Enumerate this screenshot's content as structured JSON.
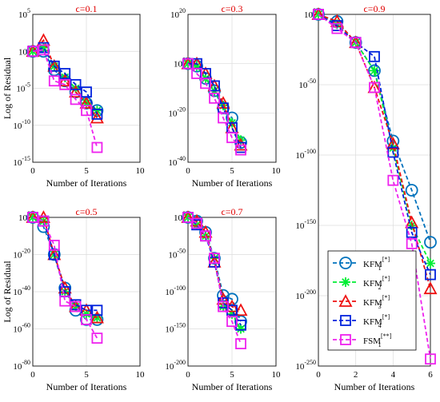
{
  "chart_data": [
    {
      "type": "line",
      "title": "ϲ=0.1",
      "xlabel": "Number of Iterations",
      "ylabel": "Log of Residual",
      "xlim": [
        0,
        10
      ],
      "xticks": [
        "0",
        "5",
        "10"
      ],
      "ylim_log10": [
        -15,
        5
      ],
      "yticks": [
        {
          "base": "10",
          "exp": "5"
        },
        {
          "base": "10",
          "exp": "0"
        },
        {
          "base": "10",
          "exp": "-5"
        },
        {
          "base": "10",
          "exp": "-10"
        },
        {
          "base": "10",
          "exp": "-15"
        }
      ],
      "grid": true,
      "series": [
        {
          "name": "KFM1[*]",
          "x": [
            0,
            1,
            2,
            3,
            4,
            5,
            6
          ],
          "log10_y": [
            0,
            0,
            -2.5,
            -4,
            -5.5,
            -7,
            -8
          ]
        },
        {
          "name": "KFM2[*]",
          "x": [
            0,
            1,
            2,
            3,
            4,
            5,
            6
          ],
          "log10_y": [
            0,
            0.5,
            -2,
            -3.5,
            -5,
            -7,
            -8
          ]
        },
        {
          "name": "KFM3[*]",
          "x": [
            0,
            1,
            2,
            3,
            4,
            5,
            6
          ],
          "log10_y": [
            0,
            1.5,
            -2,
            -4,
            -5.5,
            -7,
            -9
          ]
        },
        {
          "name": "KFM4[*]",
          "x": [
            0,
            1,
            2,
            3,
            4,
            5,
            6
          ],
          "log10_y": [
            0,
            0.5,
            -2,
            -3,
            -4.5,
            -5.5,
            -8.5
          ]
        },
        {
          "name": "FSM1[**]",
          "x": [
            0,
            1,
            2,
            3,
            4,
            5,
            6
          ],
          "log10_y": [
            0,
            0.2,
            -4,
            -4.5,
            -6.5,
            -8,
            -13
          ]
        }
      ]
    },
    {
      "type": "line",
      "title": "ϲ=0.3",
      "xlabel": "Number of Iterations",
      "ylabel": "",
      "xlim": [
        0,
        10
      ],
      "xticks": [
        "0",
        "5",
        "10"
      ],
      "ylim_log10": [
        -40,
        20
      ],
      "yticks": [
        {
          "base": "10",
          "exp": "20"
        },
        {
          "base": "10",
          "exp": "0"
        },
        {
          "base": "10",
          "exp": "-20"
        },
        {
          "base": "10",
          "exp": "-40"
        }
      ],
      "grid": true,
      "series": [
        {
          "name": "KFM1[*]",
          "x": [
            0,
            1,
            2,
            3,
            4,
            5,
            6
          ],
          "log10_y": [
            0,
            -1,
            -6,
            -11,
            -18,
            -22,
            -32
          ]
        },
        {
          "name": "KFM2[*]",
          "x": [
            0,
            1,
            2,
            3,
            4,
            5,
            6
          ],
          "log10_y": [
            0,
            -1,
            -6,
            -11,
            -17,
            -24,
            -31
          ]
        },
        {
          "name": "KFM3[*]",
          "x": [
            0,
            1,
            2,
            3,
            4,
            5,
            6
          ],
          "log10_y": [
            0,
            0,
            -4,
            -9,
            -16,
            -26,
            -33
          ]
        },
        {
          "name": "KFM4[*]",
          "x": [
            0,
            1,
            2,
            3,
            4,
            5,
            6
          ],
          "log10_y": [
            0,
            0,
            -4,
            -9,
            -18,
            -26,
            -34
          ]
        },
        {
          "name": "FSM1[**]",
          "x": [
            0,
            1,
            2,
            3,
            4,
            5,
            6
          ],
          "log10_y": [
            0,
            -4,
            -8,
            -14,
            -22,
            -30,
            -35
          ]
        }
      ]
    },
    {
      "type": "line",
      "title": "ϲ=0.9",
      "xlabel": "Number of Iterations",
      "ylabel": "",
      "xlim": [
        0,
        6
      ],
      "xticks": [
        "0",
        "2",
        "4",
        "6"
      ],
      "ylim_log10": [
        -250,
        0
      ],
      "yticks": [
        {
          "base": "10",
          "exp": "0"
        },
        {
          "base": "10",
          "exp": "-50"
        },
        {
          "base": "10",
          "exp": "-100"
        },
        {
          "base": "10",
          "exp": "-150"
        },
        {
          "base": "10",
          "exp": "-200"
        },
        {
          "base": "10",
          "exp": "-250"
        }
      ],
      "grid": true,
      "series": [
        {
          "name": "KFM1[*]",
          "x": [
            0,
            1,
            2,
            3,
            4,
            5,
            6
          ],
          "log10_y": [
            0,
            -5,
            -20,
            -40,
            -90,
            -125,
            -162
          ]
        },
        {
          "name": "KFM2[*]",
          "x": [
            0,
            1,
            2,
            3,
            4,
            5,
            6
          ],
          "log10_y": [
            0,
            -7,
            -20,
            -40,
            -95,
            -150,
            -177
          ]
        },
        {
          "name": "KFM3[*]",
          "x": [
            0,
            1,
            2,
            3,
            4,
            5,
            6
          ],
          "log10_y": [
            0,
            -5,
            -20,
            -52,
            -92,
            -148,
            -195
          ]
        },
        {
          "name": "KFM4[*]",
          "x": [
            0,
            1,
            2,
            3,
            4,
            5,
            6
          ],
          "log10_y": [
            0,
            -8,
            -20,
            -30,
            -98,
            -155,
            -185
          ]
        },
        {
          "name": "FSM1[**]",
          "x": [
            0,
            1,
            2,
            3,
            4,
            5,
            6
          ],
          "log10_y": [
            0,
            -10,
            -20,
            -52,
            -118,
            -163,
            -245
          ]
        }
      ]
    },
    {
      "type": "line",
      "title": "ϲ=0.5",
      "xlabel": "Number of Iterations",
      "ylabel": "Log of Residual",
      "xlim": [
        0,
        10
      ],
      "xticks": [
        "0",
        "5",
        "10"
      ],
      "ylim_log10": [
        -80,
        0
      ],
      "yticks": [
        {
          "base": "10",
          "exp": "0"
        },
        {
          "base": "10",
          "exp": "-20"
        },
        {
          "base": "10",
          "exp": "-40"
        },
        {
          "base": "10",
          "exp": "-60"
        },
        {
          "base": "10",
          "exp": "-80"
        }
      ],
      "grid": true,
      "series": [
        {
          "name": "KFM1[*]",
          "x": [
            0,
            1,
            2,
            3,
            4,
            5,
            6
          ],
          "log10_y": [
            0,
            -5,
            -20,
            -38,
            -50,
            -55,
            -55
          ]
        },
        {
          "name": "KFM2[*]",
          "x": [
            0,
            1,
            2,
            3,
            4,
            5,
            6
          ],
          "log10_y": [
            0,
            -2,
            -20,
            -40,
            -48,
            -52,
            -54
          ]
        },
        {
          "name": "KFM3[*]",
          "x": [
            0,
            1,
            2,
            3,
            4,
            5,
            6
          ],
          "log10_y": [
            0,
            0,
            -20,
            -38,
            -48,
            -50,
            -54
          ]
        },
        {
          "name": "KFM4[*]",
          "x": [
            0,
            1,
            2,
            3,
            4,
            5,
            6
          ],
          "log10_y": [
            0,
            -2,
            -20,
            -40,
            -47,
            -50,
            -50
          ]
        },
        {
          "name": "FSM1[**]",
          "x": [
            0,
            1,
            2,
            3,
            4,
            5,
            6
          ],
          "log10_y": [
            0,
            -2,
            -15,
            -45,
            -48,
            -55,
            -65
          ]
        }
      ]
    },
    {
      "type": "line",
      "title": "ϲ=0.7",
      "xlabel": "Number of Iterations",
      "ylabel": "",
      "xlim": [
        0,
        10
      ],
      "xticks": [
        "0",
        "5",
        "10"
      ],
      "ylim_log10": [
        -200,
        0
      ],
      "yticks": [
        {
          "base": "10",
          "exp": "0"
        },
        {
          "base": "10",
          "exp": "-50"
        },
        {
          "base": "10",
          "exp": "-100"
        },
        {
          "base": "10",
          "exp": "-150"
        },
        {
          "base": "10",
          "exp": "-200"
        }
      ],
      "grid": true,
      "series": [
        {
          "name": "KFM1[*]",
          "x": [
            0,
            1,
            2,
            3,
            4,
            5,
            6
          ],
          "log10_y": [
            0,
            -5,
            -20,
            -55,
            -105,
            -110,
            -140
          ]
        },
        {
          "name": "KFM2[*]",
          "x": [
            0,
            1,
            2,
            3,
            4,
            5,
            6
          ],
          "log10_y": [
            0,
            -10,
            -25,
            -55,
            -120,
            -130,
            -150
          ]
        },
        {
          "name": "KFM3[*]",
          "x": [
            0,
            1,
            2,
            3,
            4,
            5,
            6
          ],
          "log10_y": [
            0,
            -5,
            -20,
            -60,
            -110,
            -120,
            -125
          ]
        },
        {
          "name": "KFM4[*]",
          "x": [
            0,
            1,
            2,
            3,
            4,
            5,
            6
          ],
          "log10_y": [
            0,
            -10,
            -25,
            -60,
            -115,
            -125,
            -145
          ]
        },
        {
          "name": "FSM1[**]",
          "x": [
            0,
            1,
            2,
            3,
            4,
            5,
            6
          ],
          "log10_y": [
            0,
            -8,
            -25,
            -55,
            -120,
            -140,
            -170
          ]
        }
      ]
    }
  ],
  "legend": {
    "placement": "bottom-right of the ϲ=0.9 panel",
    "entries": [
      {
        "base": "KFM",
        "sub": "1",
        "sup": "[*]",
        "color": "#0072bd",
        "marker": "circle"
      },
      {
        "base": "KFM",
        "sub": "2",
        "sup": "[*]",
        "color": "#00ee33",
        "marker": "asterisk"
      },
      {
        "base": "KFM",
        "sub": "3",
        "sup": "[*]",
        "color": "#ee1111",
        "marker": "triangle"
      },
      {
        "base": "KFM",
        "sub": "4",
        "sup": "[*]",
        "color": "#0022dd",
        "marker": "square"
      },
      {
        "base": "FSM",
        "sub": "1",
        "sup": "[**]",
        "color": "#ee22ee",
        "marker": "square"
      }
    ]
  }
}
